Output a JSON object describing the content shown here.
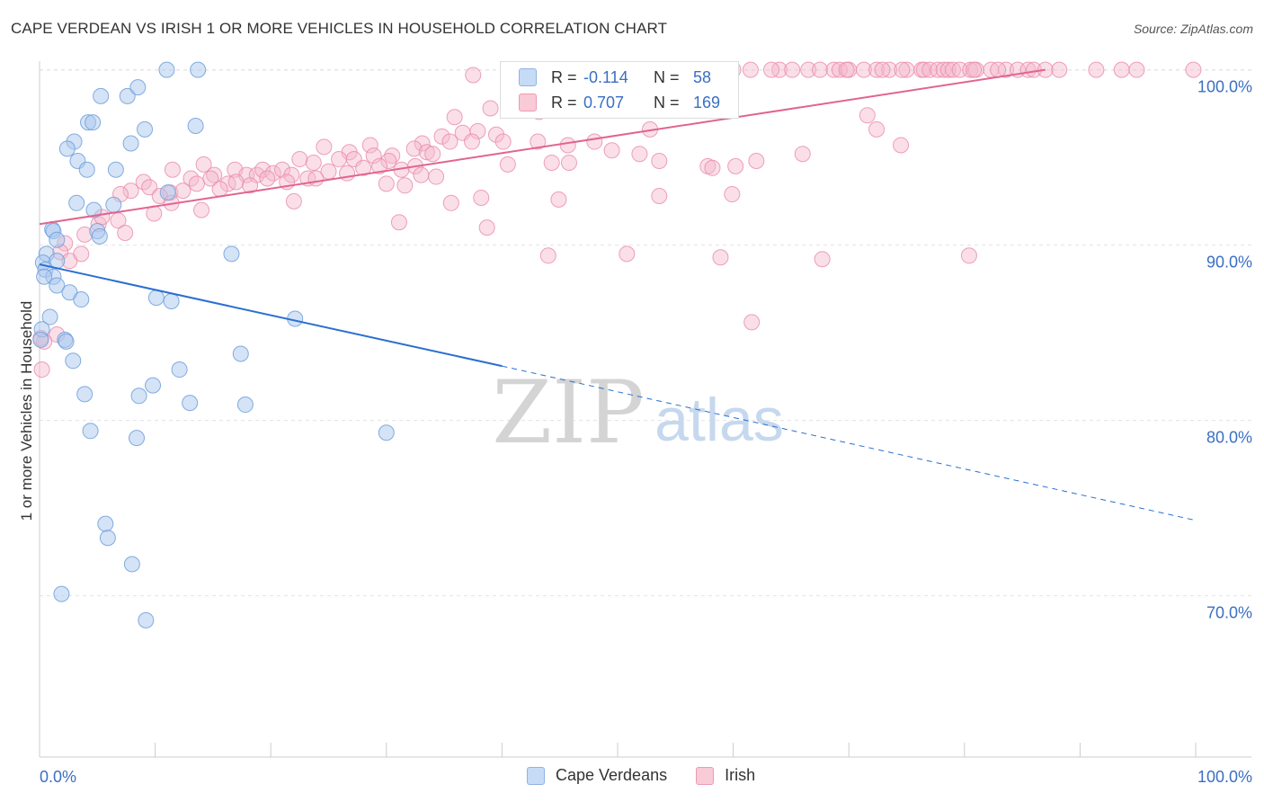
{
  "title": "CAPE VERDEAN VS IRISH 1 OR MORE VEHICLES IN HOUSEHOLD CORRELATION CHART",
  "source": "Source: ZipAtlas.com",
  "watermark": {
    "zip": "ZIP",
    "atlas": "atlas"
  },
  "colors": {
    "blue_fill": "#aac8ee",
    "blue_stroke": "#6f9fdc",
    "blue_line": "#2a6fd0",
    "pink_fill": "#f5b8cb",
    "pink_stroke": "#ea8aa8",
    "pink_line": "#e2648f",
    "tick_label": "#3a6fc4",
    "grid": "#e3e3e3"
  },
  "stats": [
    {
      "r_label": "R =",
      "r_value": "-0.114",
      "n_label": "N =",
      "n_value": "58"
    },
    {
      "r_label": "R =",
      "r_value": "0.707",
      "n_label": "N =",
      "n_value": "169"
    }
  ],
  "legend": [
    "Cape Verdeans",
    "Irish"
  ],
  "chart_data": {
    "type": "scatter",
    "title": "CAPE VERDEAN VS IRISH 1 OR MORE VEHICLES IN HOUSEHOLD CORRELATION CHART",
    "xlabel": "",
    "ylabel": "1 or more Vehicles in Household",
    "xlim": [
      0,
      100
    ],
    "ylim": [
      60.8,
      100.8
    ],
    "x_tick_labels": [
      "0.0%",
      "100.0%"
    ],
    "y_ticks": [
      70,
      80,
      90,
      100
    ],
    "y_tick_labels": [
      "70.0%",
      "80.0%",
      "90.0%",
      "100.0%"
    ],
    "grid": true,
    "legend_position": "bottom-center",
    "series": [
      {
        "name": "Cape Verdeans",
        "r": -0.114,
        "n": 58,
        "trend": {
          "x": [
            0,
            40
          ],
          "y": [
            88.9,
            83.1
          ],
          "dashed_to": [
            100,
            74.3
          ]
        },
        "points": [
          [
            11.0,
            100.0
          ],
          [
            13.7,
            100.0
          ],
          [
            5.3,
            98.5
          ],
          [
            7.6,
            98.5
          ],
          [
            8.5,
            99.0
          ],
          [
            4.2,
            97.0
          ],
          [
            4.6,
            97.0
          ],
          [
            9.1,
            96.6
          ],
          [
            13.5,
            96.8
          ],
          [
            3.0,
            95.9
          ],
          [
            7.9,
            95.8
          ],
          [
            2.4,
            95.5
          ],
          [
            3.3,
            94.8
          ],
          [
            4.1,
            94.3
          ],
          [
            6.6,
            94.3
          ],
          [
            3.2,
            92.4
          ],
          [
            11.1,
            93.0
          ],
          [
            6.4,
            92.3
          ],
          [
            4.7,
            92.0
          ],
          [
            1.1,
            90.9
          ],
          [
            1.2,
            90.8
          ],
          [
            5.0,
            90.8
          ],
          [
            5.2,
            90.5
          ],
          [
            1.5,
            90.3
          ],
          [
            16.6,
            89.5
          ],
          [
            0.6,
            89.5
          ],
          [
            0.3,
            89.0
          ],
          [
            1.5,
            89.1
          ],
          [
            0.5,
            88.6
          ],
          [
            1.2,
            88.2
          ],
          [
            0.4,
            88.2
          ],
          [
            1.5,
            87.7
          ],
          [
            2.6,
            87.3
          ],
          [
            3.6,
            86.9
          ],
          [
            10.1,
            87.0
          ],
          [
            11.4,
            86.8
          ],
          [
            22.1,
            85.8
          ],
          [
            0.9,
            85.9
          ],
          [
            0.2,
            85.2
          ],
          [
            2.2,
            84.6
          ],
          [
            2.3,
            84.5
          ],
          [
            17.4,
            83.8
          ],
          [
            2.9,
            83.4
          ],
          [
            12.1,
            82.9
          ],
          [
            9.8,
            82.0
          ],
          [
            3.9,
            81.5
          ],
          [
            8.6,
            81.4
          ],
          [
            13.0,
            81.0
          ],
          [
            17.8,
            80.9
          ],
          [
            4.4,
            79.4
          ],
          [
            30.0,
            79.3
          ],
          [
            8.4,
            79.0
          ],
          [
            5.7,
            74.1
          ],
          [
            5.9,
            73.3
          ],
          [
            8.0,
            71.8
          ],
          [
            1.9,
            70.1
          ],
          [
            9.2,
            68.6
          ],
          [
            0.1,
            84.6
          ]
        ]
      },
      {
        "name": "Irish",
        "r": 0.707,
        "n": 169,
        "trend": {
          "x": [
            0,
            87
          ],
          "y": [
            91.2,
            100.0
          ]
        },
        "points": [
          [
            42.0,
            100.0
          ],
          [
            44.2,
            100.0
          ],
          [
            46.1,
            100.0
          ],
          [
            47.4,
            100.0
          ],
          [
            49.3,
            100.0
          ],
          [
            55.0,
            100.0
          ],
          [
            56.1,
            100.0
          ],
          [
            57.8,
            100.0
          ],
          [
            59.0,
            100.0
          ],
          [
            61.5,
            100.0
          ],
          [
            64.0,
            100.0
          ],
          [
            65.1,
            100.0
          ],
          [
            66.5,
            100.0
          ],
          [
            67.5,
            100.0
          ],
          [
            68.7,
            100.0
          ],
          [
            69.2,
            100.0
          ],
          [
            70.0,
            100.0
          ],
          [
            71.3,
            100.0
          ],
          [
            72.4,
            100.0
          ],
          [
            73.5,
            100.0
          ],
          [
            75.0,
            100.0
          ],
          [
            76.3,
            100.0
          ],
          [
            76.5,
            100.0
          ],
          [
            77.0,
            100.0
          ],
          [
            77.7,
            100.0
          ],
          [
            78.2,
            100.0
          ],
          [
            78.6,
            100.0
          ],
          [
            79.0,
            100.0
          ],
          [
            79.6,
            100.0
          ],
          [
            80.5,
            100.0
          ],
          [
            81.0,
            100.0
          ],
          [
            82.3,
            100.0
          ],
          [
            83.6,
            100.0
          ],
          [
            84.6,
            100.0
          ],
          [
            85.5,
            100.0
          ],
          [
            86.0,
            100.0
          ],
          [
            87.0,
            100.0
          ],
          [
            88.2,
            100.0
          ],
          [
            91.4,
            100.0
          ],
          [
            93.6,
            100.0
          ],
          [
            94.9,
            100.0
          ],
          [
            99.8,
            100.0
          ],
          [
            50.9,
            100.0
          ],
          [
            60.0,
            100.0
          ],
          [
            63.3,
            100.0
          ],
          [
            69.8,
            100.0
          ],
          [
            72.9,
            100.0
          ],
          [
            74.6,
            100.0
          ],
          [
            80.8,
            100.0
          ],
          [
            82.9,
            100.0
          ],
          [
            37.5,
            99.7
          ],
          [
            41.2,
            99.5
          ],
          [
            45.2,
            99.3
          ],
          [
            48.8,
            98.9
          ],
          [
            50.5,
            98.5
          ],
          [
            56.4,
            98.6
          ],
          [
            58.8,
            98.4
          ],
          [
            41.9,
            98.1
          ],
          [
            39.0,
            97.8
          ],
          [
            43.2,
            97.6
          ],
          [
            53.5,
            98.2
          ],
          [
            42.5,
            97.7
          ],
          [
            35.9,
            97.3
          ],
          [
            71.6,
            97.4
          ],
          [
            52.8,
            96.6
          ],
          [
            72.4,
            96.6
          ],
          [
            36.6,
            96.4
          ],
          [
            37.9,
            96.5
          ],
          [
            39.5,
            96.3
          ],
          [
            34.8,
            96.2
          ],
          [
            35.5,
            95.9
          ],
          [
            40.1,
            95.9
          ],
          [
            43.1,
            95.9
          ],
          [
            45.7,
            95.7
          ],
          [
            48.0,
            95.9
          ],
          [
            33.1,
            95.8
          ],
          [
            32.4,
            95.5
          ],
          [
            33.5,
            95.3
          ],
          [
            30.5,
            95.1
          ],
          [
            28.6,
            95.7
          ],
          [
            26.8,
            95.3
          ],
          [
            28.9,
            95.1
          ],
          [
            34.0,
            95.2
          ],
          [
            37.4,
            95.9
          ],
          [
            49.5,
            95.4
          ],
          [
            51.9,
            95.2
          ],
          [
            66.0,
            95.2
          ],
          [
            74.5,
            95.7
          ],
          [
            24.6,
            95.6
          ],
          [
            22.5,
            94.9
          ],
          [
            23.7,
            94.7
          ],
          [
            25.9,
            94.9
          ],
          [
            27.2,
            94.9
          ],
          [
            30.2,
            94.8
          ],
          [
            31.3,
            94.3
          ],
          [
            32.5,
            94.5
          ],
          [
            40.5,
            94.6
          ],
          [
            44.3,
            94.7
          ],
          [
            45.8,
            94.7
          ],
          [
            53.6,
            94.8
          ],
          [
            57.8,
            94.5
          ],
          [
            58.2,
            94.4
          ],
          [
            60.2,
            94.5
          ],
          [
            62.0,
            94.8
          ],
          [
            11.5,
            94.3
          ],
          [
            14.2,
            94.6
          ],
          [
            15.1,
            94.0
          ],
          [
            16.9,
            94.3
          ],
          [
            17.9,
            94.0
          ],
          [
            18.8,
            94.0
          ],
          [
            19.3,
            94.3
          ],
          [
            20.2,
            94.1
          ],
          [
            21.0,
            94.3
          ],
          [
            21.8,
            94.0
          ],
          [
            23.2,
            93.8
          ],
          [
            25.0,
            94.2
          ],
          [
            26.6,
            94.1
          ],
          [
            28.0,
            94.4
          ],
          [
            29.4,
            94.5
          ],
          [
            33.0,
            94.0
          ],
          [
            34.3,
            93.9
          ],
          [
            13.1,
            93.8
          ],
          [
            14.8,
            93.8
          ],
          [
            16.3,
            93.5
          ],
          [
            17.0,
            93.6
          ],
          [
            18.2,
            93.4
          ],
          [
            19.7,
            93.8
          ],
          [
            21.4,
            93.6
          ],
          [
            23.9,
            93.8
          ],
          [
            30.0,
            93.5
          ],
          [
            31.6,
            93.4
          ],
          [
            9.0,
            93.6
          ],
          [
            9.5,
            93.3
          ],
          [
            11.3,
            93.0
          ],
          [
            12.4,
            93.1
          ],
          [
            13.6,
            93.5
          ],
          [
            15.6,
            93.2
          ],
          [
            7.9,
            93.1
          ],
          [
            7.0,
            92.9
          ],
          [
            10.4,
            92.8
          ],
          [
            11.4,
            92.4
          ],
          [
            14.0,
            92.0
          ],
          [
            22.0,
            92.5
          ],
          [
            35.6,
            92.4
          ],
          [
            38.2,
            92.7
          ],
          [
            44.9,
            92.6
          ],
          [
            53.6,
            92.8
          ],
          [
            59.9,
            92.9
          ],
          [
            6.8,
            91.4
          ],
          [
            5.1,
            91.2
          ],
          [
            9.9,
            91.8
          ],
          [
            31.1,
            91.3
          ],
          [
            38.7,
            91.0
          ],
          [
            5.4,
            91.6
          ],
          [
            3.9,
            90.6
          ],
          [
            7.4,
            90.7
          ],
          [
            2.2,
            90.1
          ],
          [
            1.8,
            89.6
          ],
          [
            2.6,
            89.1
          ],
          [
            3.6,
            89.5
          ],
          [
            44.0,
            89.4
          ],
          [
            50.8,
            89.5
          ],
          [
            58.9,
            89.3
          ],
          [
            67.7,
            89.2
          ],
          [
            80.4,
            89.4
          ],
          [
            61.6,
            85.6
          ],
          [
            0.1,
            84.7
          ],
          [
            1.5,
            84.9
          ],
          [
            0.4,
            84.5
          ],
          [
            0.2,
            82.9
          ]
        ]
      }
    ]
  }
}
